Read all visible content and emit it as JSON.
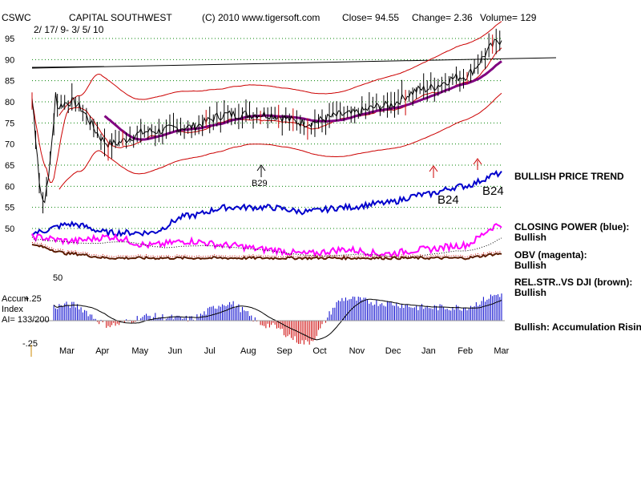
{
  "header": {
    "symbol": "CSWC",
    "company": "CAPITAL SOUTHWEST",
    "copyright": "(C) 2010 www.tigersoft.com",
    "close": "Close=  94.55",
    "change": "Change= 2.36",
    "volume": "Volume= 129",
    "date_range": "2/ 17/ 9- 3/ 5/ 10"
  },
  "price_axis": {
    "ticks": [
      "95",
      "90",
      "85",
      "80",
      "75",
      "70",
      "65",
      "60",
      "55",
      "50"
    ]
  },
  "months": [
    "Mar",
    "Apr",
    "May",
    "Jun",
    "Jul",
    "Aug",
    "Sep",
    "Oct",
    "Nov",
    "Dec",
    "Jan",
    "Feb",
    "Mar"
  ],
  "indicator_labels": {
    "ind_low": "50",
    "accum_title": "Accum",
    "accum_sub": "Index",
    "ai": "AI= 133/200",
    "plus": "+.25",
    "minus": "-.25"
  },
  "signals": {
    "b29": "B29",
    "b24a": "B24",
    "b24b": "B24"
  },
  "side_labels": {
    "trend": "BULLISH PRICE TREND",
    "cp": "CLOSING POWER (blue):",
    "cp_v": "Bullish",
    "obv": "OBV (magenta):",
    "obv_v": "Bullish",
    "rs": "REL.STR..VS DJI (brown):",
    "rs_v": "Bullish",
    "acc": "Bullish: Accumulation Rising"
  },
  "colors": {
    "price": "#000000",
    "band": "#cc0000",
    "ma": "#800080",
    "closing_power": "#0000cc",
    "obv": "#ff00ff",
    "rel_str": "#5a1a00",
    "accum_pos": "#0000cc",
    "accum_neg": "#cc0000",
    "grid": "#008000"
  },
  "chart_data": {
    "type": "line",
    "x": [
      "Mar",
      "Apr",
      "May",
      "Jun",
      "Jul",
      "Aug",
      "Sep",
      "Oct",
      "Nov",
      "Dec",
      "Jan",
      "Feb",
      "Mar"
    ],
    "ylim": [
      50,
      95
    ],
    "series": [
      {
        "name": "Close",
        "values": [
          75,
          80,
          70,
          73,
          74,
          77,
          77,
          75,
          77,
          79,
          83,
          86,
          94.5
        ]
      },
      {
        "name": "CLOSING POWER (blue)",
        "values": [
          49,
          51,
          49,
          49,
          53,
          55,
          55,
          54,
          55,
          56,
          58,
          60,
          63
        ]
      },
      {
        "name": "OBV (magenta)",
        "values": [
          48,
          47,
          48,
          46,
          47,
          46,
          45,
          44,
          45,
          44,
          45,
          46,
          51
        ]
      },
      {
        "name": "REL.STR..VS DJI (brown)",
        "values": [
          46,
          44,
          43,
          43,
          43,
          43,
          43,
          43,
          43,
          43,
          43,
          43,
          44
        ]
      },
      {
        "name": "Accum Index",
        "values": [
          0.12,
          0.18,
          -0.05,
          0.05,
          0.02,
          0.2,
          -0.05,
          -0.25,
          0.25,
          0.2,
          0.15,
          0.15,
          0.3
        ]
      }
    ]
  }
}
